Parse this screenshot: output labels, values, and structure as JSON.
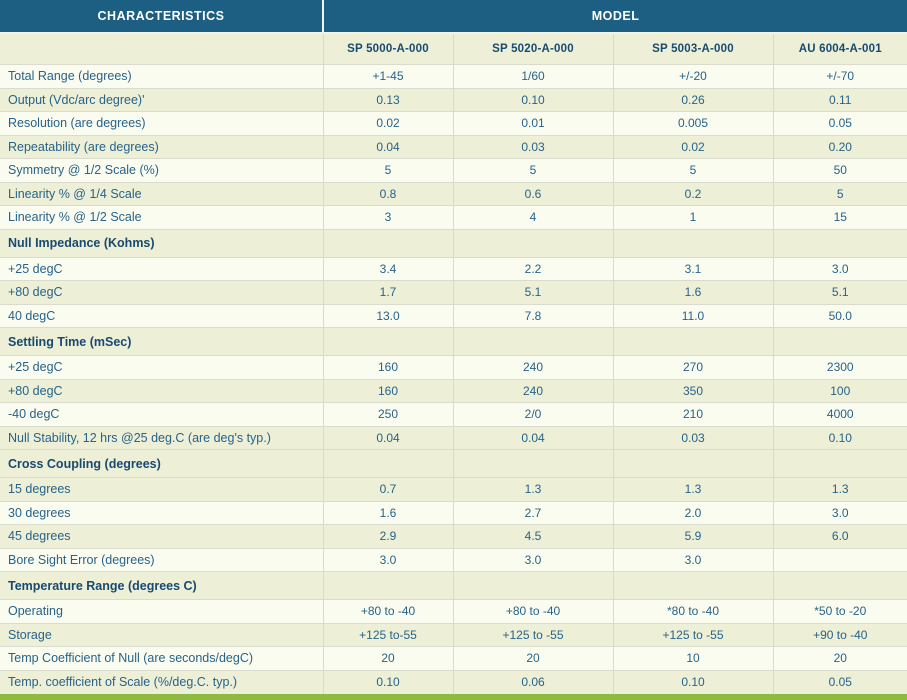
{
  "table": {
    "characteristics_header": "CHARACTERISTICS",
    "model_header": "MODEL",
    "model_columns": [
      "SP 5000-A-000",
      "SP 5020-A-000",
      "SP 5003-A-000",
      "AU 6004-A-001"
    ],
    "rows": [
      {
        "label": "Total Range (degrees)",
        "type": "data",
        "shade": "light",
        "values": [
          "+1-45",
          "1/60",
          "+/-20",
          "+/-70"
        ]
      },
      {
        "label": "Output (Vdc/arc degree)'",
        "type": "data",
        "shade": "dark",
        "values": [
          "0.13",
          "0.10",
          "0.26",
          "0.11"
        ]
      },
      {
        "label": "Resolution (are degrees)",
        "type": "data",
        "shade": "light",
        "values": [
          "0.02",
          "0.01",
          "0.005",
          "0.05"
        ]
      },
      {
        "label": "Repeatability (are degrees)",
        "type": "data",
        "shade": "dark",
        "values": [
          "0.04",
          "0.03",
          "0.02",
          "0.20"
        ]
      },
      {
        "label": "Symmetry @ 1/2 Scale (%)",
        "type": "data",
        "shade": "light",
        "values": [
          "5",
          "5",
          "5",
          "50"
        ]
      },
      {
        "label": "Linearity % @ 1/4 Scale",
        "type": "data",
        "shade": "dark",
        "values": [
          "0.8",
          "0.6",
          "0.2",
          "5"
        ]
      },
      {
        "label": "Linearity % @ 1/2 Scale",
        "type": "data",
        "shade": "light",
        "values": [
          "3",
          "4",
          "1",
          "15"
        ]
      },
      {
        "label": "Null Impedance (Kohms)",
        "type": "section",
        "shade": "dark",
        "values": [
          "",
          "",
          "",
          ""
        ]
      },
      {
        "label": "+25 degC",
        "type": "data",
        "shade": "light",
        "values": [
          "3.4",
          "2.2",
          "3.1",
          "3.0"
        ]
      },
      {
        "label": "+80 degC",
        "type": "data",
        "shade": "dark",
        "values": [
          "1.7",
          "5.1",
          "1.6",
          "5.1"
        ]
      },
      {
        "label": "40 degC",
        "type": "data",
        "shade": "light",
        "values": [
          "13.0",
          "7.8",
          "11.0",
          "50.0"
        ]
      },
      {
        "label": "Settling Time (mSec)",
        "type": "section",
        "shade": "dark",
        "values": [
          "",
          "",
          "",
          ""
        ]
      },
      {
        "label": "+25 degC",
        "type": "data",
        "shade": "light",
        "values": [
          "160",
          "240",
          "270",
          "2300"
        ]
      },
      {
        "label": "+80 degC",
        "type": "data",
        "shade": "dark",
        "values": [
          "160",
          "240",
          "350",
          "100"
        ]
      },
      {
        "label": "-40 degC",
        "type": "data",
        "shade": "light",
        "values": [
          "250",
          "2/0",
          "210",
          "4000"
        ]
      },
      {
        "label": "Null Stability, 12 hrs @25 deg.C (are deg's typ.)",
        "type": "data",
        "shade": "dark",
        "values": [
          "0.04",
          "0.04",
          "0.03",
          "0.10"
        ]
      },
      {
        "label": "Cross Coupling (degrees)",
        "type": "section",
        "shade": "dark",
        "values": [
          "",
          "",
          "",
          ""
        ]
      },
      {
        "label": "15 degrees",
        "type": "data",
        "shade": "dark",
        "values": [
          "0.7",
          "1.3",
          "1.3",
          "1.3"
        ]
      },
      {
        "label": "30 degrees",
        "type": "data",
        "shade": "light",
        "values": [
          "1.6",
          "2.7",
          "2.0",
          "3.0"
        ]
      },
      {
        "label": "45 degrees",
        "type": "data",
        "shade": "dark",
        "values": [
          "2.9",
          "4.5",
          "5.9",
          "6.0"
        ]
      },
      {
        "label": "Bore Sight Error (degrees)",
        "type": "data",
        "shade": "light",
        "values": [
          "3.0",
          "3.0",
          "3.0",
          ""
        ]
      },
      {
        "label": "Temperature Range (degrees C)",
        "type": "section",
        "shade": "dark",
        "values": [
          "",
          "",
          "",
          ""
        ]
      },
      {
        "label": "Operating",
        "type": "data",
        "shade": "light",
        "values": [
          "+80 to -40",
          "+80 to -40",
          "*80 to -40",
          "*50 to -20"
        ]
      },
      {
        "label": "Storage",
        "type": "data",
        "shade": "dark",
        "values": [
          "+125 to-55",
          "+125 to -55",
          "+125 to -55",
          "+90 to -40"
        ]
      },
      {
        "label": "Temp Coefficient of Null (are seconds/degC)",
        "type": "data",
        "shade": "light",
        "values": [
          "20",
          "20",
          "10",
          "20"
        ]
      },
      {
        "label": "Temp. coefficient of Scale (%/deg.C. typ.)",
        "type": "data",
        "shade": "dark",
        "values": [
          "0.10",
          "0.06",
          "0.10",
          "0.05"
        ]
      }
    ]
  },
  "colors": {
    "header_bg": "#1d5e83",
    "header_text": "#ffffff",
    "row_light": "#fafcf0",
    "row_dark": "#edefd7",
    "label_text": "#27638a",
    "section_text": "#184a70",
    "border": "#d9dbce",
    "bottom_bar": "#8eba41"
  }
}
